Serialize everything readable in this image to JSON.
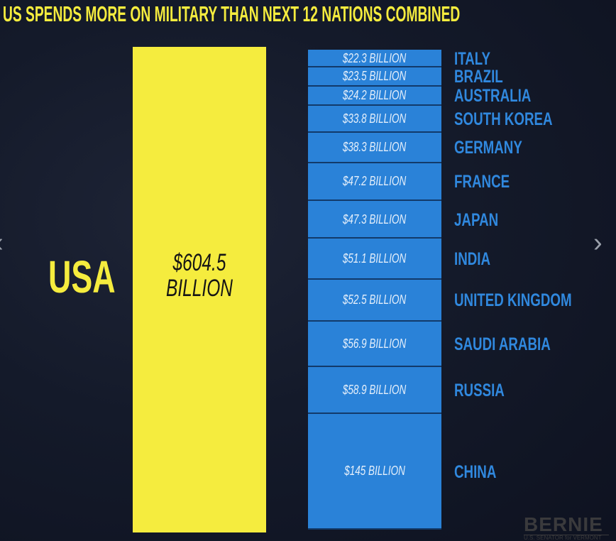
{
  "carousel": {
    "prev_icon": "chevron-left-icon",
    "next_icon": "chevron-right-icon",
    "prev_glyph": "‹",
    "next_glyph": "›"
  },
  "logo": {
    "text": "BERNIE",
    "subtitle": "U.S. SENATOR for VERMONT"
  },
  "chart_data": {
    "type": "bar",
    "title": "US SPENDS MORE ON MILITARY THAN NEXT 12 NATIONS COMBINED",
    "unit": "billion USD",
    "main": {
      "category": "USA",
      "value": 604.5,
      "label": "$604.5 BILLION",
      "color": "#f5ec3e"
    },
    "stack_color": "#2a82d8",
    "label_color": "#3088de",
    "categories": [
      "ITALY",
      "BRAZIL",
      "AUSTRALIA",
      "SOUTH KOREA",
      "GERMANY",
      "FRANCE",
      "JAPAN",
      "INDIA",
      "UNITED KINGDOM",
      "SAUDI ARABIA",
      "RUSSIA",
      "CHINA"
    ],
    "values": [
      22.3,
      23.5,
      24.2,
      33.8,
      38.3,
      47.2,
      47.3,
      51.1,
      52.5,
      56.9,
      58.9,
      145
    ],
    "value_labels": [
      "$22.3 BILLION",
      "$23.5 BILLION",
      "$24.2  BILLION",
      "$33.8  BILLION",
      "$38.3  BILLION",
      "$47.2  BILLION",
      "$47.3  BILLION",
      "$51.1  BILLION",
      "$52.5  BILLION",
      "$56.9 BILLION",
      "$58.9 BILLION",
      "$145 BILLION"
    ]
  }
}
